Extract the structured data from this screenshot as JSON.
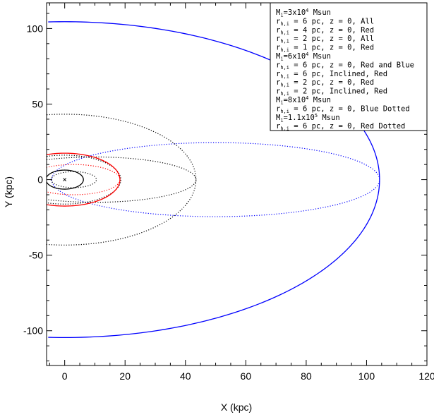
{
  "chart_data": {
    "type": "line",
    "title": "",
    "xlabel": "X (kpc)",
    "ylabel": "Y (kpc)",
    "xlim": [
      -6,
      120
    ],
    "ylim": [
      -123,
      117
    ],
    "x_ticks": [
      0,
      20,
      40,
      60,
      80,
      100,
      120
    ],
    "y_ticks": [
      -100,
      -50,
      0,
      50,
      100
    ],
    "grid": false,
    "legend_position": "top-right",
    "legend": [
      {
        "main": "M",
        "sub": "i",
        "rest": "=3x10",
        "sup": "4",
        "tail": " Msun"
      },
      {
        "main": "r",
        "sub": "h,i",
        "rest": " = 6 pc, z = 0, All"
      },
      {
        "main": "r",
        "sub": "h,i",
        "rest": " = 4 pc, z = 0, Red"
      },
      {
        "main": "r",
        "sub": "h,i",
        "rest": " = 2 pc, z = 0, All"
      },
      {
        "main": "r",
        "sub": "h,i",
        "rest": " = 1 pc, z = 0, Red"
      },
      {
        "main": "M",
        "sub": "i",
        "rest": "=6x10",
        "sup": "4",
        "tail": " Msun"
      },
      {
        "main": "r",
        "sub": "h,i",
        "rest": " = 6 pc, z = 0, Red and Blue"
      },
      {
        "main": "r",
        "sub": "h,i",
        "rest": " = 6 pc, Inclined, Red"
      },
      {
        "main": "r",
        "sub": "h,i",
        "rest": " = 2 pc, z = 0, Red"
      },
      {
        "main": "r",
        "sub": "h,i",
        "rest": " = 2 pc, Inclined, Red"
      },
      {
        "main": "M",
        "sub": "i",
        "rest": "=8x10",
        "sup": "4",
        "tail": " Msun"
      },
      {
        "main": "r",
        "sub": "h,i",
        "rest": " = 6 pc, z = 0, Blue Dotted"
      },
      {
        "main": "M",
        "sub": "i",
        "rest": "=1.1x10",
        "sup": "5",
        "tail": " Msun"
      },
      {
        "main": "r",
        "sub": "h,i",
        "rest": " = 6 pc, z = 0, Red Dotted"
      }
    ],
    "center_marker": {
      "x": 0,
      "y": 0,
      "symbol": "x"
    },
    "series": [
      {
        "color": "#0000ff",
        "style": "solid",
        "x_center": 0,
        "x_right": 104.3,
        "y_half": 104.5,
        "x_min": -6
      },
      {
        "color": "#0000ff",
        "style": "dotted",
        "x_center": 50,
        "x_right": 104.3,
        "y_half": 24.5,
        "x_min": -6
      },
      {
        "color": "#000000",
        "style": "dotted",
        "x_center": 0,
        "x_right": 43.5,
        "y_half": 43.3,
        "x_min": -6
      },
      {
        "color": "#000000",
        "style": "dotted",
        "x_center": 10,
        "x_right": 43.5,
        "y_half": 15,
        "x_min": -6
      },
      {
        "color": "#000000",
        "style": "dotted",
        "x_center": 0,
        "x_right": 18.6,
        "y_half": 16.2,
        "x_min": -6
      },
      {
        "color": "#000000",
        "style": "dotted",
        "x_center": 3,
        "x_right": 10.5,
        "y_half": 5.3,
        "x_min": -6
      },
      {
        "color": "#ff0000",
        "style": "solid",
        "x_center": 0,
        "x_right": 18.3,
        "y_half": 17.5,
        "x_min": -6
      },
      {
        "color": "#ff0000",
        "style": "dotted",
        "x_center": 3,
        "x_right": 18.3,
        "y_half": 10,
        "x_min": -6
      },
      {
        "color": "#000000",
        "style": "solid",
        "x_center": 0,
        "x_right": 6.2,
        "y_half": 6.3,
        "x_min": -6
      }
    ]
  }
}
